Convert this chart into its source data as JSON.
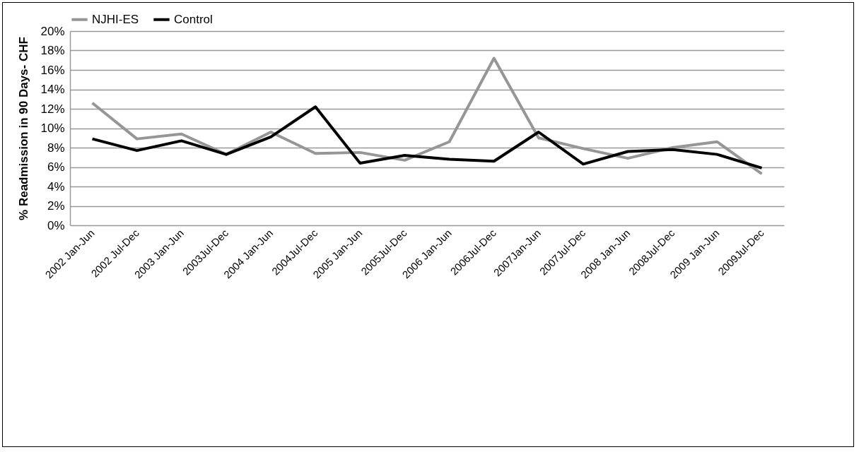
{
  "chart_data": {
    "type": "line",
    "ylabel": "% Readmission in 90 Days- CHF",
    "categories": [
      "2002 Jan-Jun",
      "2002  Jul-Dec",
      "2003 Jan-Jun",
      "2003Jul-Dec",
      "2004 Jan-Jun",
      "2004Jul-Dec",
      "2005 Jan-Jun",
      "2005Jul-Dec",
      "2006 Jan-Jun",
      "2006Jul-Dec",
      "2007Jan-Jun",
      "2007Jul-Dec",
      "2008 Jan-Jun",
      "2008Jul-Dec",
      "2009 Jan-Jun",
      "2009Jul-Dec"
    ],
    "series": [
      {
        "name": "NJHI-ES",
        "color": "#969696",
        "values": [
          12.6,
          8.9,
          9.4,
          7.3,
          9.6,
          7.4,
          7.5,
          6.7,
          8.6,
          17.2,
          9.0,
          7.9,
          6.9,
          8.0,
          8.6,
          5.3
        ]
      },
      {
        "name": "Control",
        "color": "#000000",
        "values": [
          8.9,
          7.7,
          8.7,
          7.3,
          9.1,
          12.2,
          6.4,
          7.2,
          6.8,
          6.6,
          9.6,
          6.3,
          7.6,
          7.8,
          7.3,
          5.9
        ]
      }
    ],
    "ylim": [
      0,
      20
    ],
    "yticks": [
      {
        "value": 0,
        "label": "0%"
      },
      {
        "value": 2,
        "label": "2%"
      },
      {
        "value": 4,
        "label": "4%"
      },
      {
        "value": 6,
        "label": "6%"
      },
      {
        "value": 8,
        "label": "8%"
      },
      {
        "value": 10,
        "label": "10%"
      },
      {
        "value": 12,
        "label": "12%"
      },
      {
        "value": 14,
        "label": "14%"
      },
      {
        "value": 16,
        "label": "16%"
      },
      {
        "value": 18,
        "label": "18%"
      },
      {
        "value": 20,
        "label": "20%"
      }
    ],
    "grid": "y",
    "legend": "top",
    "line_style": "solid"
  }
}
